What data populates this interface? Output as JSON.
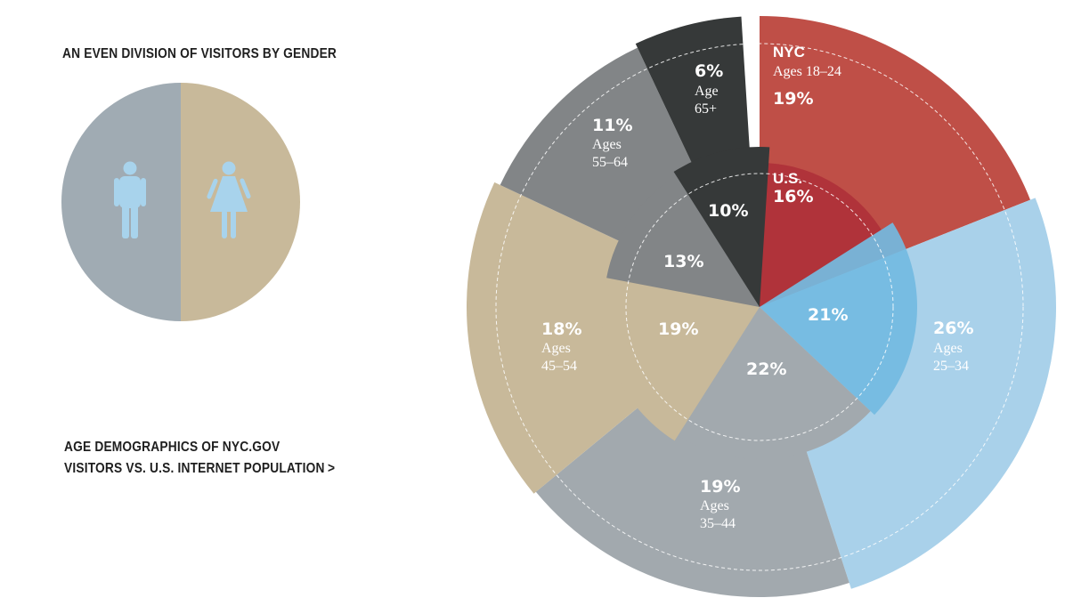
{
  "gender": {
    "title": "AN EVEN DIVISION OF VISITORS BY GENDER",
    "male_color": "#a0abb3",
    "female_color": "#c8b99a",
    "icon_color": "#a8d3ec"
  },
  "age_section": {
    "title_line1": "AGE DEMOGRAPHICS OF NYC.GOV",
    "title_line2": "VISITORS VS. U.S. INTERNET POPULATION",
    "chevron": ">"
  },
  "chart_data": [
    {
      "type": "pie",
      "title": "AN EVEN DIVISION OF VISITORS BY GENDER",
      "categories": [
        "Male",
        "Female"
      ],
      "values": [
        50,
        50
      ]
    },
    {
      "type": "pie",
      "title": "AGE DEMOGRAPHICS OF NYC.GOV VISITORS VS. U.S. INTERNET POPULATION",
      "outer_series_label": "NYC",
      "inner_series_label": "U.S.",
      "segments": [
        {
          "age_label": "Ages",
          "age_range": "18–24",
          "nyc_text": "19%",
          "us_text": "16%",
          "nyc": 19,
          "us": 16,
          "color": "#bf4f47",
          "inner_color": "#b0333a"
        },
        {
          "age_label": "Ages",
          "age_range": "25–34",
          "nyc_text": "26%",
          "us_text": "21%",
          "nyc": 26,
          "us": 21,
          "color": "#a9d1ea",
          "inner_color": "#73bae1"
        },
        {
          "age_label": "Ages",
          "age_range": "35–44",
          "nyc_text": "19%",
          "us_text": "22%",
          "nyc": 19,
          "us": 22,
          "color": "#a2a9ae",
          "inner_color": "#a2a9ae"
        },
        {
          "age_label": "Ages",
          "age_range": "45–54",
          "nyc_text": "18%",
          "us_text": "19%",
          "nyc": 18,
          "us": 19,
          "color": "#c8b99a",
          "inner_color": "#c8b99a"
        },
        {
          "age_label": "Ages",
          "age_range": "55–64",
          "nyc_text": "11%",
          "us_text": "13%",
          "nyc": 11,
          "us": 13,
          "color": "#828587",
          "inner_color": "#828587"
        },
        {
          "age_label": "Age",
          "age_range": "65+",
          "nyc_text": "6%",
          "us_text": "10%",
          "nyc": 6,
          "us": 10,
          "color": "#363939",
          "inner_color": "#363939"
        }
      ]
    }
  ]
}
